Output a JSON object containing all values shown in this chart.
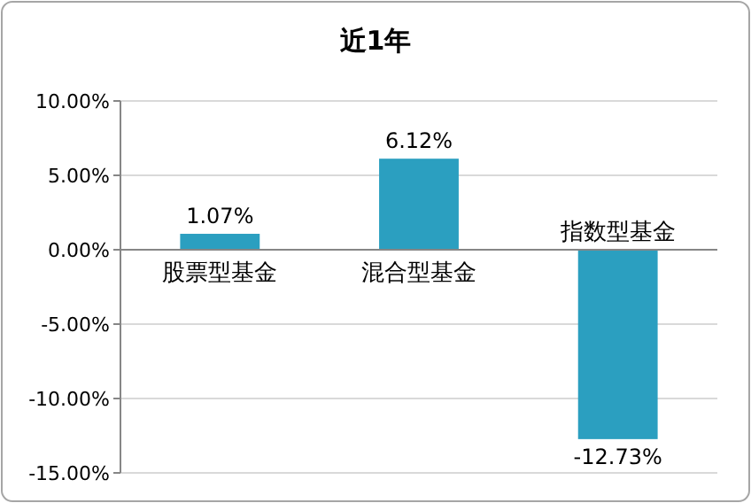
{
  "chart_data": {
    "type": "bar",
    "title": "近1年",
    "categories": [
      "股票型基金",
      "混合型基金",
      "指数型基金"
    ],
    "values": [
      1.07,
      6.12,
      -12.73
    ],
    "value_labels": [
      "1.07%",
      "6.12%",
      "-12.73%"
    ],
    "color": "#2b9fc0",
    "ylim": [
      -15,
      10
    ],
    "yticks": [
      {
        "value": -15,
        "label": "-15.00%"
      },
      {
        "value": -10,
        "label": "-10.00%"
      },
      {
        "value": -5,
        "label": "-5.00%"
      },
      {
        "value": 0,
        "label": "0.00%"
      },
      {
        "value": 5,
        "label": "5.00%"
      },
      {
        "value": 10,
        "label": "10.00%"
      }
    ],
    "grid": "y"
  }
}
